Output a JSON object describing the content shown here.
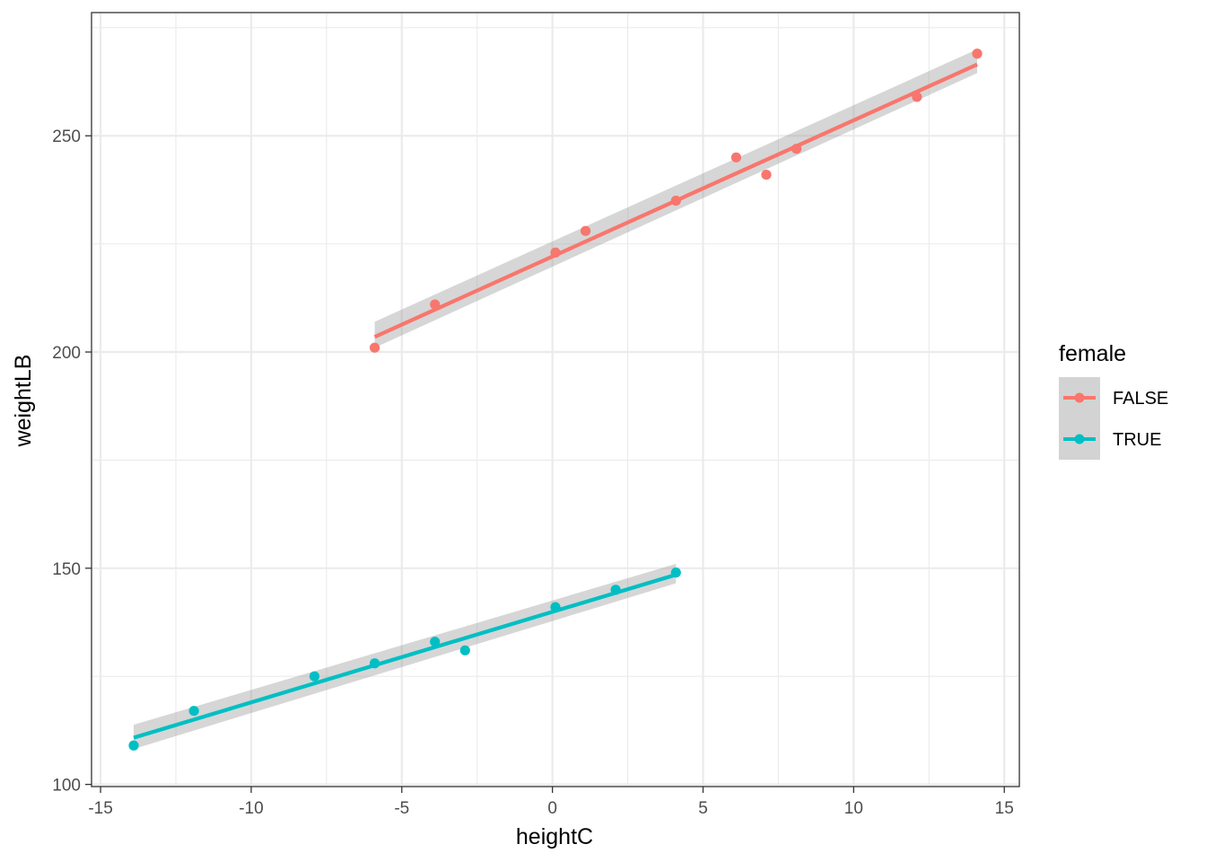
{
  "chart_data": {
    "type": "scatter",
    "title": "",
    "xlabel": "heightC",
    "ylabel": "weightLB",
    "xlim": [
      -15.3,
      15.5
    ],
    "ylim": [
      99.5,
      278.5
    ],
    "x_ticks": [
      -15,
      -10,
      -5,
      0,
      5,
      10,
      15
    ],
    "x_tick_labels": [
      "-15",
      "-10",
      "-5",
      "0",
      "5",
      "10",
      "15"
    ],
    "y_ticks": [
      100,
      150,
      200,
      250
    ],
    "y_tick_labels": [
      "100",
      "150",
      "200",
      "250"
    ],
    "grid": true,
    "legend": {
      "title": "female",
      "position": "right"
    },
    "series": [
      {
        "name": "FALSE",
        "color": "#F8766D",
        "points": [
          {
            "x": -5.9,
            "y": 201
          },
          {
            "x": -3.9,
            "y": 211
          },
          {
            "x": 0.1,
            "y": 223
          },
          {
            "x": 1.1,
            "y": 228
          },
          {
            "x": 4.1,
            "y": 235
          },
          {
            "x": 6.1,
            "y": 245
          },
          {
            "x": 7.1,
            "y": 241
          },
          {
            "x": 8.1,
            "y": 247
          },
          {
            "x": 12.1,
            "y": 259
          },
          {
            "x": 14.1,
            "y": 269
          }
        ],
        "fit": {
          "x": [
            -5.9,
            14.1
          ],
          "y": [
            203.5,
            266.5
          ]
        },
        "ci_lower": [
          201.0,
          264.5
        ],
        "ci_upper": [
          207.0,
          270.0
        ]
      },
      {
        "name": "TRUE",
        "color": "#00BFC4",
        "points": [
          {
            "x": -13.9,
            "y": 109
          },
          {
            "x": -11.9,
            "y": 117
          },
          {
            "x": -7.9,
            "y": 125
          },
          {
            "x": -5.9,
            "y": 128
          },
          {
            "x": -3.9,
            "y": 133
          },
          {
            "x": -2.9,
            "y": 131
          },
          {
            "x": 0.1,
            "y": 141
          },
          {
            "x": 2.1,
            "y": 145
          },
          {
            "x": 4.1,
            "y": 149
          }
        ],
        "fit": {
          "x": [
            -13.9,
            4.1
          ],
          "y": [
            110.8,
            148.5
          ]
        },
        "ci_lower": [
          108.2,
          146.5
        ],
        "ci_upper": [
          113.8,
          151.0
        ]
      }
    ]
  }
}
